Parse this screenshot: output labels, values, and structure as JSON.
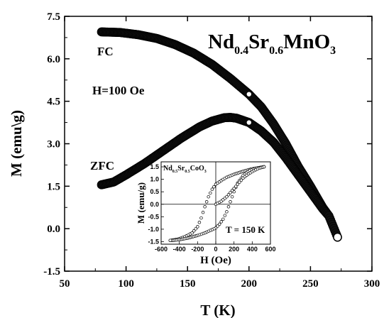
{
  "chart_data": [
    {
      "type": "scatter",
      "title": "Nd0.4Sr0.6MnO3",
      "title_parts": {
        "el1": "Nd",
        "sub1": "0.4",
        "el2": "Sr",
        "sub2": "0.6",
        "el3": "MnO",
        "sub3": "3"
      },
      "xlabel": "T (K)",
      "ylabel": "M (emu\\g)",
      "xlim": [
        50,
        300
      ],
      "ylim": [
        -1.5,
        7.5
      ],
      "xticks": [
        "50",
        "100",
        "150",
        "200",
        "250",
        "300"
      ],
      "yticks": [
        "-1.5",
        "0.0",
        "1.5",
        "3.0",
        "4.5",
        "6.0",
        "7.5"
      ],
      "annotations": {
        "field": "H=100 Oe"
      },
      "grid": false,
      "series": [
        {
          "name": "FC",
          "x": [
            80,
            95,
            110,
            125,
            140,
            155,
            170,
            185,
            200,
            210,
            220,
            230,
            240,
            250,
            260,
            265,
            272
          ],
          "y": [
            6.95,
            6.93,
            6.85,
            6.72,
            6.5,
            6.2,
            5.8,
            5.3,
            4.75,
            4.3,
            3.7,
            3.0,
            2.2,
            1.5,
            0.75,
            0.45,
            -0.3
          ]
        },
        {
          "name": "ZFC",
          "x": [
            80,
            90,
            100,
            115,
            130,
            145,
            160,
            170,
            180,
            185,
            190,
            200,
            210,
            220,
            230,
            240,
            250,
            260,
            265,
            272
          ],
          "y": [
            1.55,
            1.65,
            1.9,
            2.3,
            2.75,
            3.2,
            3.6,
            3.8,
            3.92,
            3.93,
            3.9,
            3.75,
            3.45,
            3.05,
            2.5,
            1.9,
            1.3,
            0.7,
            0.45,
            -0.3
          ]
        }
      ]
    },
    {
      "type": "scatter",
      "title": "Nd0.5Sr0.5CoO3",
      "title_parts": {
        "el1": "Nd",
        "sub1": "0.5",
        "el2": "Sr",
        "sub2": "0.5",
        "el3": "CoO",
        "sub3": "3"
      },
      "xlabel": "H (Oe)",
      "ylabel": "M (emu/g)",
      "xlim": [
        -600,
        600
      ],
      "ylim": [
        -1.6,
        1.7
      ],
      "xticks": [
        "-600",
        "-400",
        "-200",
        "0",
        "200",
        "400",
        "600"
      ],
      "yticks": [
        "-1.5",
        "-1.0",
        "-0.5",
        "0.0",
        "0.5",
        "1.0",
        "1.5"
      ],
      "annotations": {
        "temperature": "T = 150 K"
      },
      "grid": false,
      "series": [
        {
          "x": [
            -500,
            -420,
            -340,
            -260,
            -200,
            -160,
            -120,
            -80,
            -40,
            0,
            60,
            120,
            200,
            300,
            400,
            480,
            530
          ],
          "y": [
            -1.45,
            -1.4,
            -1.3,
            -1.15,
            -0.9,
            -0.55,
            -0.1,
            0.3,
            0.6,
            0.8,
            0.95,
            1.08,
            1.2,
            1.32,
            1.42,
            1.47,
            1.5
          ]
        },
        {
          "x": [
            530,
            450,
            370,
            300,
            240,
            200,
            160,
            120,
            80,
            40,
            0,
            -60,
            -120,
            -200,
            -300,
            -400,
            -470,
            -500
          ],
          "y": [
            1.5,
            1.45,
            1.35,
            1.15,
            0.85,
            0.5,
            0.1,
            -0.3,
            -0.6,
            -0.8,
            -0.95,
            -1.05,
            -1.15,
            -1.25,
            -1.35,
            -1.42,
            -1.45,
            -1.45
          ]
        },
        {
          "x": [
            0,
            60,
            120,
            180,
            240,
            300,
            360,
            420,
            480,
            530
          ],
          "y": [
            0.0,
            0.12,
            0.3,
            0.55,
            0.8,
            1.05,
            1.22,
            1.35,
            1.45,
            1.5
          ]
        }
      ]
    }
  ]
}
